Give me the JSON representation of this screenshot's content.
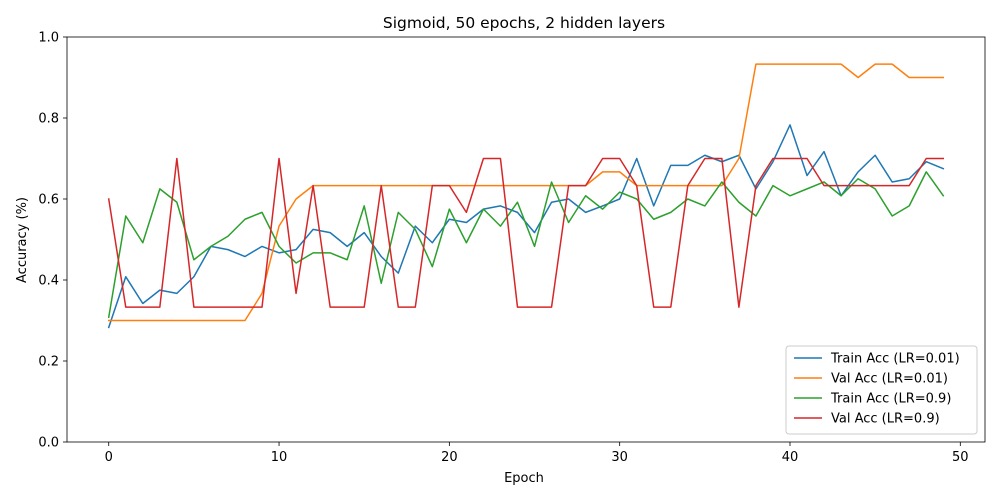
{
  "chart_data": {
    "type": "line",
    "title": "Sigmoid, 50 epochs, 2 hidden layers",
    "xlabel": "Epoch",
    "ylabel": "Accuracy (%)",
    "xlim": [
      -2.45,
      51.45
    ],
    "ylim": [
      0.0,
      1.0
    ],
    "xticks": [
      0,
      10,
      20,
      30,
      40,
      50
    ],
    "yticks": [
      0.0,
      0.2,
      0.4,
      0.6,
      0.8,
      1.0
    ],
    "xtick_labels": [
      "0",
      "10",
      "20",
      "30",
      "40",
      "50"
    ],
    "ytick_labels": [
      "0.0",
      "0.2",
      "0.4",
      "0.6",
      "0.8",
      "1.0"
    ],
    "grid": false,
    "legend_position": "lower-right",
    "x": [
      0,
      1,
      2,
      3,
      4,
      5,
      6,
      7,
      8,
      9,
      10,
      11,
      12,
      13,
      14,
      15,
      16,
      17,
      18,
      19,
      20,
      21,
      22,
      23,
      24,
      25,
      26,
      27,
      28,
      29,
      30,
      31,
      32,
      33,
      34,
      35,
      36,
      37,
      38,
      39,
      40,
      41,
      42,
      43,
      44,
      45,
      46,
      47,
      48,
      49
    ],
    "series": [
      {
        "name": "Train Acc (LR=0.01)",
        "color": "#1f77b4",
        "values": [
          0.283,
          0.408,
          0.342,
          0.375,
          0.367,
          0.408,
          0.483,
          0.475,
          0.458,
          0.483,
          0.467,
          0.475,
          0.525,
          0.517,
          0.483,
          0.517,
          0.458,
          0.417,
          0.533,
          0.492,
          0.55,
          0.542,
          0.575,
          0.583,
          0.567,
          0.517,
          0.592,
          0.6,
          0.567,
          0.583,
          0.6,
          0.7,
          0.583,
          0.683,
          0.683,
          0.708,
          0.692,
          0.708,
          0.625,
          0.692,
          0.783,
          0.658,
          0.717,
          0.608,
          0.667,
          0.708,
          0.642,
          0.65,
          0.692,
          0.675
        ]
      },
      {
        "name": "Val Acc (LR=0.01)",
        "color": "#ff7f0e",
        "values": [
          0.3,
          0.3,
          0.3,
          0.3,
          0.3,
          0.3,
          0.3,
          0.3,
          0.3,
          0.367,
          0.533,
          0.6,
          0.633,
          0.633,
          0.633,
          0.633,
          0.633,
          0.633,
          0.633,
          0.633,
          0.633,
          0.633,
          0.633,
          0.633,
          0.633,
          0.633,
          0.633,
          0.633,
          0.633,
          0.667,
          0.667,
          0.633,
          0.633,
          0.633,
          0.633,
          0.633,
          0.633,
          0.7,
          0.933,
          0.933,
          0.933,
          0.933,
          0.933,
          0.933,
          0.9,
          0.933,
          0.933,
          0.9,
          0.9,
          0.9
        ]
      },
      {
        "name": "Train Acc (LR=0.9)",
        "color": "#2ca02c",
        "values": [
          0.308,
          0.558,
          0.492,
          0.625,
          0.592,
          0.45,
          0.483,
          0.508,
          0.55,
          0.567,
          0.483,
          0.442,
          0.467,
          0.467,
          0.45,
          0.583,
          0.392,
          0.567,
          0.525,
          0.433,
          0.575,
          0.492,
          0.575,
          0.533,
          0.592,
          0.483,
          0.642,
          0.542,
          0.608,
          0.575,
          0.617,
          0.6,
          0.55,
          0.567,
          0.6,
          0.583,
          0.642,
          0.592,
          0.558,
          0.633,
          0.608,
          0.625,
          0.642,
          0.608,
          0.65,
          0.625,
          0.558,
          0.583,
          0.667,
          0.608
        ]
      },
      {
        "name": "Val Acc (LR=0.9)",
        "color": "#d62728",
        "values": [
          0.6,
          0.333,
          0.333,
          0.333,
          0.7,
          0.333,
          0.333,
          0.333,
          0.333,
          0.333,
          0.7,
          0.367,
          0.633,
          0.333,
          0.333,
          0.333,
          0.633,
          0.333,
          0.333,
          0.633,
          0.633,
          0.567,
          0.7,
          0.7,
          0.333,
          0.333,
          0.333,
          0.633,
          0.633,
          0.7,
          0.7,
          0.633,
          0.333,
          0.333,
          0.633,
          0.7,
          0.7,
          0.333,
          0.633,
          0.7,
          0.7,
          0.7,
          0.633,
          0.633,
          0.633,
          0.633,
          0.633,
          0.633,
          0.7,
          0.7
        ]
      }
    ]
  }
}
